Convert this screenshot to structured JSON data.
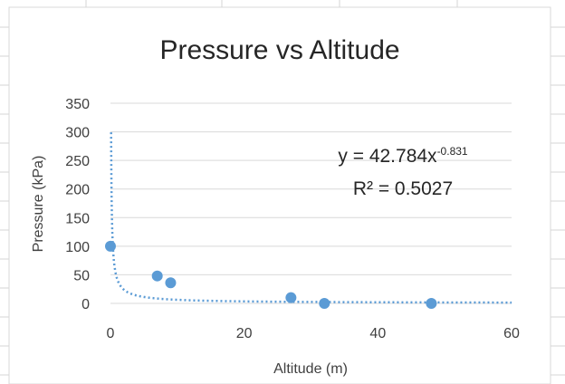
{
  "chart_data": {
    "type": "scatter",
    "title": "Pressure vs Altitude",
    "xlabel": "Altitude (m)",
    "ylabel": "Pressure (kPa)",
    "xlim": [
      0,
      60
    ],
    "ylim": [
      0,
      350
    ],
    "x_ticks": [
      "0",
      "20",
      "40",
      "60"
    ],
    "y_ticks": [
      "0",
      "50",
      "100",
      "150",
      "200",
      "250",
      "300",
      "350"
    ],
    "grid": "horizontal",
    "legend": "none",
    "series": [
      {
        "points": [
          {
            "x": 0,
            "y": 100
          },
          {
            "x": 7,
            "y": 48
          },
          {
            "x": 9,
            "y": 36
          },
          {
            "x": 27,
            "y": 10
          },
          {
            "x": 32,
            "y": 0
          },
          {
            "x": 48,
            "y": 0
          }
        ],
        "color": "#5b9bd5"
      }
    ],
    "trendline": {
      "kind": "power",
      "coefficient": 42.784,
      "exponent": -0.831,
      "style": "dotted",
      "color": "#5b9bd5"
    },
    "annotations": {
      "equation_prefix": "y = 42.784x",
      "equation_exponent": "-0.831",
      "r_squared": "R² = 0.5027"
    }
  },
  "colors": {
    "marker": "#5b9bd5",
    "gridline": "#d9d9d9",
    "sheet_grid": "#d4d4d4",
    "text": "#404040"
  }
}
